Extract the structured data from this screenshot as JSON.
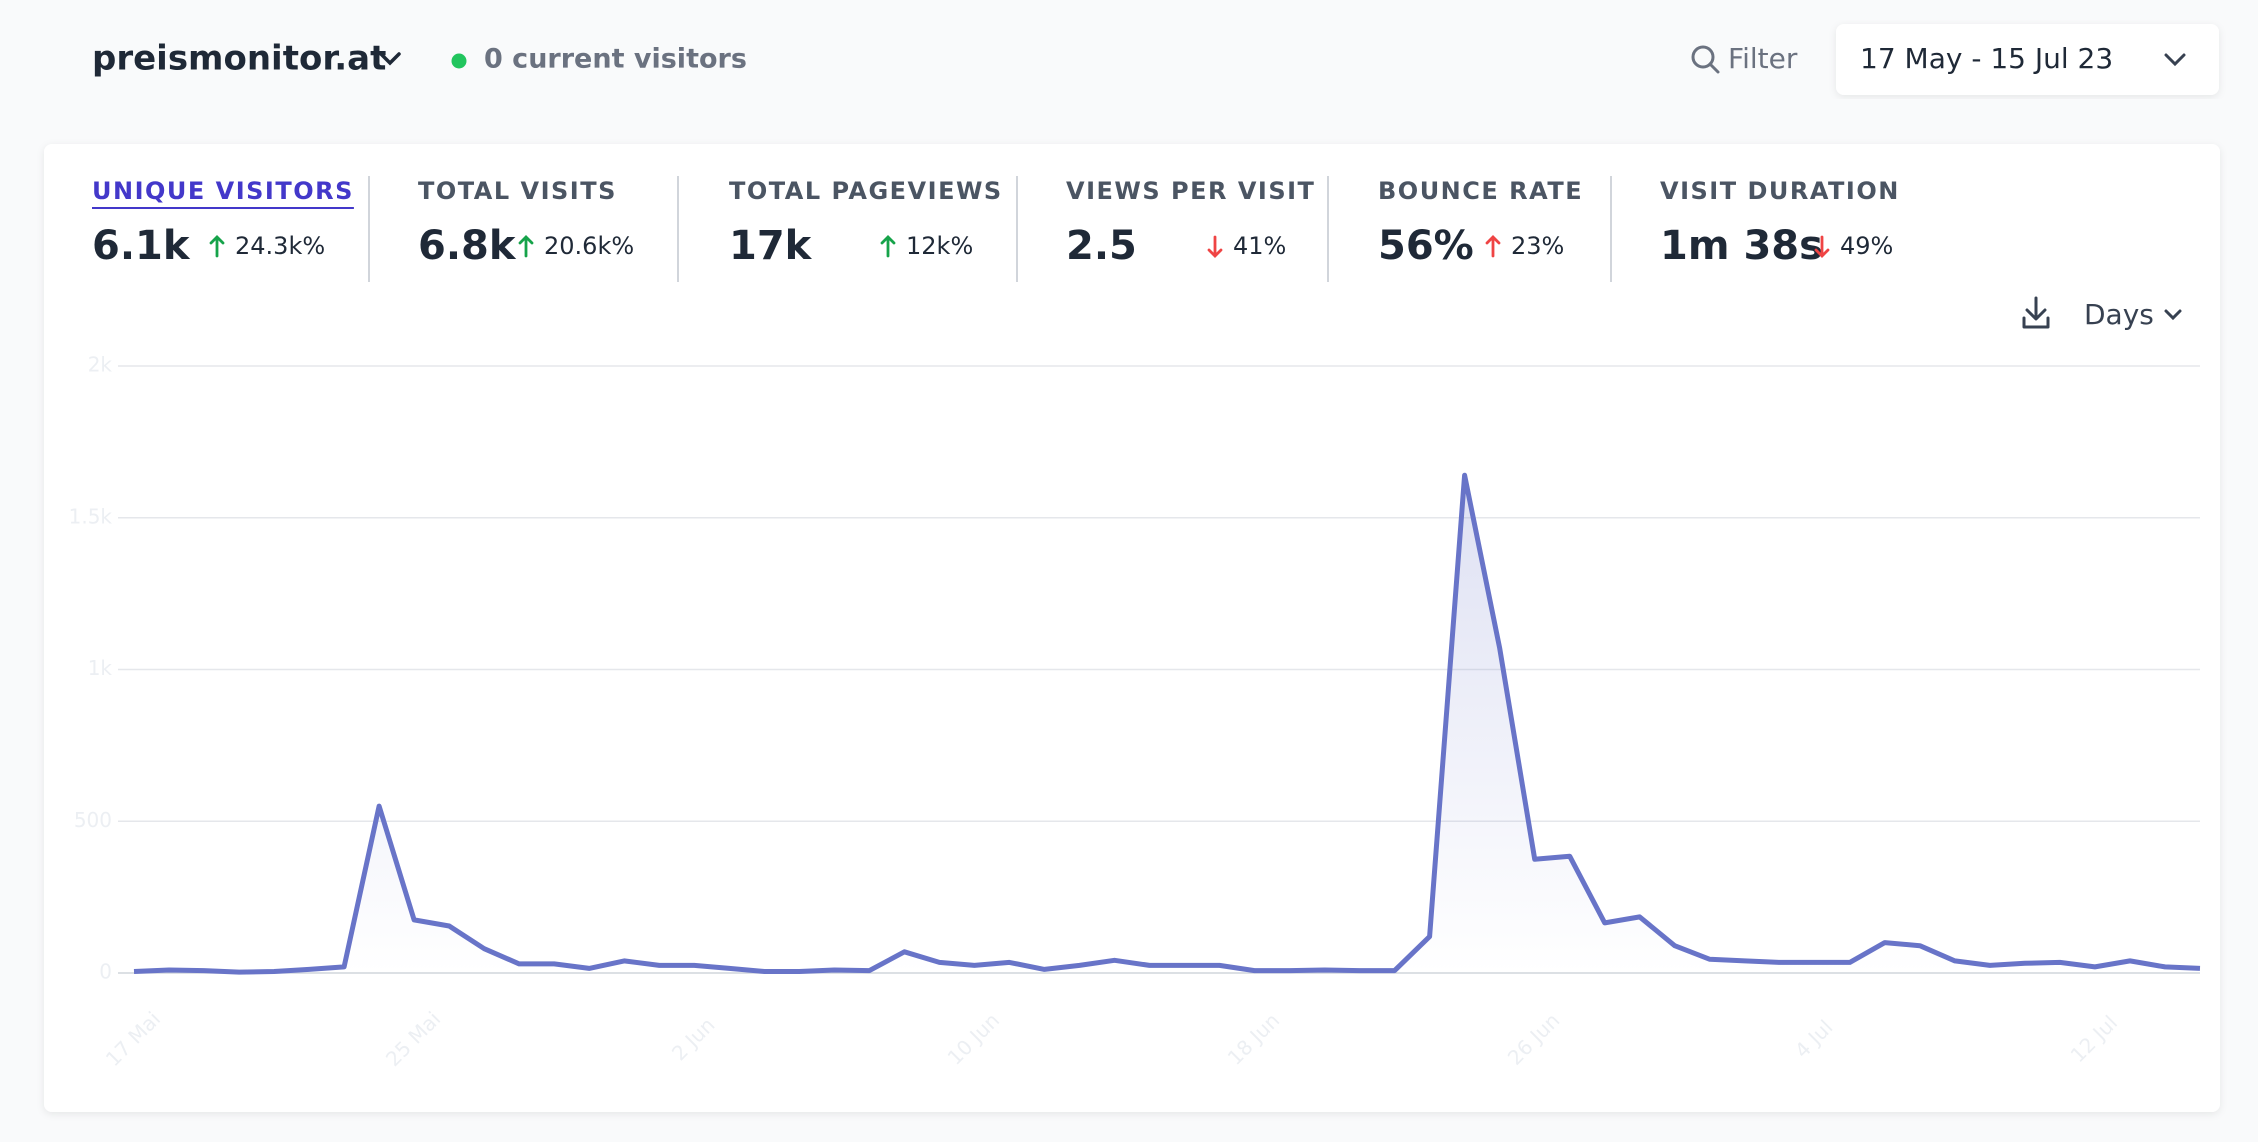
{
  "header": {
    "site": "preismonitor.at",
    "current_visitors": "0 current visitors",
    "filter": "Filter",
    "date_range": "17 May - 15 Jul 23"
  },
  "metrics": [
    {
      "label": "UNIQUE VISITORS",
      "value": "6.1k",
      "change": "24.3k%",
      "trend": "up"
    },
    {
      "label": "TOTAL VISITS",
      "value": "6.8k",
      "change": "20.6k%",
      "trend": "up"
    },
    {
      "label": "TOTAL PAGEVIEWS",
      "value": "17k",
      "change": "12k%",
      "trend": "up"
    },
    {
      "label": "VIEWS PER VISIT",
      "value": "2.5",
      "change": "41%",
      "trend": "down"
    },
    {
      "label": "BOUNCE RATE",
      "value": "56%",
      "change": "23%",
      "trend": "up-bad"
    },
    {
      "label": "VISIT DURATION",
      "value": "1m 38s",
      "change": "49%",
      "trend": "down"
    }
  ],
  "active_metric": 0,
  "interval": "Days",
  "chart_data": {
    "type": "line",
    "color": "#6874c8",
    "categories": [
      "17 Mai",
      null,
      null,
      null,
      null,
      null,
      null,
      null,
      "25 Mai",
      null,
      null,
      null,
      null,
      null,
      null,
      null,
      "2 Jun",
      null,
      null,
      null,
      null,
      null,
      null,
      null,
      "10 Jun",
      null,
      null,
      null,
      null,
      null,
      null,
      null,
      "18 Jun",
      null,
      null,
      null,
      null,
      null,
      null,
      null,
      "26 Jun",
      null,
      null,
      null,
      null,
      null,
      null,
      null,
      "4 Jul",
      null,
      null,
      null,
      null,
      null,
      null,
      null,
      "12 Jul",
      null,
      null,
      null
    ],
    "values": [
      5,
      10,
      8,
      3,
      5,
      12,
      20,
      550,
      175,
      155,
      80,
      30,
      30,
      15,
      40,
      25,
      25,
      15,
      5,
      5,
      10,
      8,
      70,
      35,
      25,
      35,
      12,
      25,
      42,
      25,
      25,
      25,
      8,
      8,
      10,
      8,
      8,
      120,
      1640,
      1070,
      375,
      385,
      165,
      185,
      90,
      45,
      40,
      35,
      35,
      35,
      100,
      90,
      40,
      25,
      32,
      35,
      20,
      40,
      20,
      15
    ],
    "ylim": [
      0,
      2000
    ],
    "yticks": [
      0,
      500,
      {
        "value": 1000,
        "label": "1k"
      },
      {
        "value": 1500,
        "label": "1.5k"
      },
      {
        "value": 2000,
        "label": "2k"
      }
    ],
    "grid": true
  }
}
